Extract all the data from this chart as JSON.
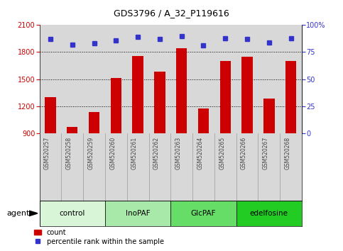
{
  "title": "GDS3796 / A_32_P119616",
  "samples": [
    "GSM520257",
    "GSM520258",
    "GSM520259",
    "GSM520260",
    "GSM520261",
    "GSM520262",
    "GSM520263",
    "GSM520264",
    "GSM520265",
    "GSM520266",
    "GSM520267",
    "GSM520268"
  ],
  "bar_values": [
    1300,
    970,
    1130,
    1510,
    1760,
    1580,
    1840,
    1170,
    1700,
    1750,
    1280,
    1700
  ],
  "percentile_values": [
    87,
    82,
    83,
    86,
    89,
    87,
    90,
    81,
    88,
    87,
    84,
    88
  ],
  "ylim_left": [
    900,
    2100
  ],
  "ylim_right": [
    0,
    100
  ],
  "yticks_left": [
    900,
    1200,
    1500,
    1800,
    2100
  ],
  "yticks_right": [
    0,
    25,
    50,
    75,
    100
  ],
  "bar_color": "#cc0000",
  "dot_color": "#3333cc",
  "groups": [
    {
      "label": "control",
      "start": 0,
      "end": 3,
      "color": "#d8f5d8"
    },
    {
      "label": "InoPAF",
      "start": 3,
      "end": 6,
      "color": "#a8e8a8"
    },
    {
      "label": "GlcPAF",
      "start": 6,
      "end": 9,
      "color": "#66dd66"
    },
    {
      "label": "edelfosine",
      "start": 9,
      "end": 12,
      "color": "#22cc22"
    }
  ],
  "legend_count_label": "count",
  "legend_pct_label": "percentile rank within the sample",
  "sample_label_color": "#444444",
  "bg_color": "#d8d8d8",
  "bar_width": 0.5
}
